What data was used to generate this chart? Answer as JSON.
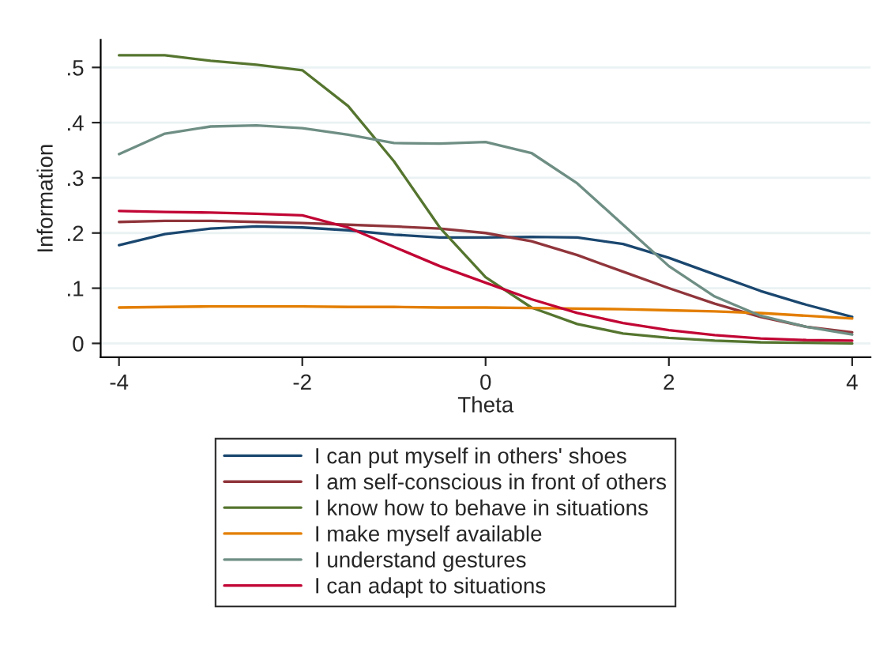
{
  "chart_data": {
    "type": "line",
    "xlabel": "Theta",
    "ylabel": "Information",
    "x": [
      -4,
      -3.5,
      -3,
      -2.5,
      -2,
      -1.5,
      -1,
      -0.5,
      0,
      0.5,
      1,
      1.5,
      2,
      2.5,
      3,
      3.5,
      4
    ],
    "series": [
      {
        "name": "I can put myself in others' shoes",
        "color": "#1a476f",
        "values": [
          0.178,
          0.198,
          0.208,
          0.212,
          0.21,
          0.205,
          0.197,
          0.192,
          0.192,
          0.193,
          0.192,
          0.18,
          0.155,
          0.125,
          0.095,
          0.07,
          0.048
        ]
      },
      {
        "name": "I am self-conscious in front of others",
        "color": "#90353b",
        "values": [
          0.22,
          0.222,
          0.222,
          0.22,
          0.218,
          0.215,
          0.212,
          0.208,
          0.2,
          0.185,
          0.16,
          0.13,
          0.1,
          0.072,
          0.048,
          0.03,
          0.02
        ]
      },
      {
        "name": "I know how to behave in situations",
        "color": "#55752f",
        "values": [
          0.522,
          0.522,
          0.512,
          0.505,
          0.495,
          0.43,
          0.33,
          0.21,
          0.12,
          0.065,
          0.035,
          0.018,
          0.01,
          0.005,
          0.002,
          0.001,
          0.0
        ]
      },
      {
        "name": "I make myself available",
        "color": "#e37e00",
        "values": [
          0.065,
          0.066,
          0.067,
          0.067,
          0.067,
          0.066,
          0.066,
          0.065,
          0.065,
          0.064,
          0.063,
          0.062,
          0.06,
          0.058,
          0.055,
          0.05,
          0.045
        ]
      },
      {
        "name": "I understand gestures",
        "color": "#6e8e84",
        "values": [
          0.343,
          0.38,
          0.393,
          0.395,
          0.39,
          0.378,
          0.363,
          0.362,
          0.365,
          0.345,
          0.29,
          0.215,
          0.14,
          0.085,
          0.05,
          0.03,
          0.016
        ]
      },
      {
        "name": "I can adapt to situations",
        "color": "#c10534",
        "values": [
          0.24,
          0.238,
          0.237,
          0.235,
          0.232,
          0.21,
          0.175,
          0.14,
          0.11,
          0.08,
          0.055,
          0.037,
          0.024,
          0.015,
          0.009,
          0.006,
          0.005
        ]
      }
    ],
    "xlim": [
      -4.2,
      4.2
    ],
    "xticks": [
      -4,
      -2,
      0,
      2,
      4
    ],
    "ylim": [
      -0.025,
      0.55
    ],
    "yticks": [
      {
        "value": 0,
        "label": "0"
      },
      {
        "value": 0.1,
        "label": ".1"
      },
      {
        "value": 0.2,
        "label": ".2"
      },
      {
        "value": 0.3,
        "label": ".3"
      },
      {
        "value": 0.4,
        "label": ".4"
      },
      {
        "value": 0.5,
        "label": ".5"
      }
    ],
    "grid": "y",
    "legend": "bottom"
  }
}
